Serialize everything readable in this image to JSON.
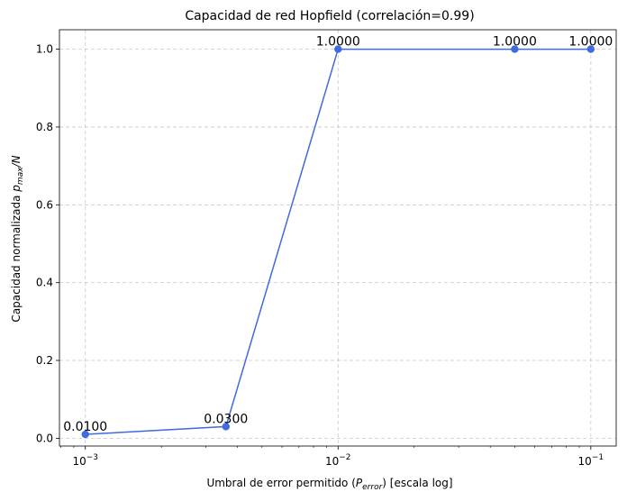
{
  "chart_data": {
    "type": "line",
    "title": "Capacidad de red Hopfield (correlación=0.99)",
    "xlabel": {
      "prefix": "Umbral de error permitido (",
      "var": "P",
      "sub": "error",
      "suffix": ") [escala log]"
    },
    "ylabel": {
      "prefix": "Capacidad normalizada ",
      "var": "p",
      "sub": "max",
      "suffix": "/N"
    },
    "x_scale": "log",
    "xlim": [
      0.00079,
      0.126
    ],
    "ylim": [
      -0.02,
      1.05
    ],
    "grid": true,
    "grid_style": "dashed",
    "series": [
      {
        "name": "capacidad",
        "color": "#4169e1",
        "x": [
          0.001,
          0.0036,
          0.01,
          0.05,
          0.1
        ],
        "y": [
          0.01,
          0.03,
          1.0,
          1.0,
          1.0
        ],
        "labels": [
          "0.0100",
          "0.0300",
          "1.0000",
          "1.0000",
          "1.0000"
        ]
      }
    ],
    "y_ticks": [
      {
        "value": 0.0,
        "label": "0.0"
      },
      {
        "value": 0.2,
        "label": "0.2"
      },
      {
        "value": 0.4,
        "label": "0.4"
      },
      {
        "value": 0.6,
        "label": "0.6"
      },
      {
        "value": 0.8,
        "label": "0.8"
      },
      {
        "value": 1.0,
        "label": "1.0"
      }
    ],
    "x_ticks": [
      {
        "value": 0.001,
        "base": "10",
        "exp": "−3"
      },
      {
        "value": 0.01,
        "base": "10",
        "exp": "−2"
      },
      {
        "value": 0.1,
        "base": "10",
        "exp": "−1"
      }
    ],
    "x_minor_ticks": [
      0.0008,
      0.0009,
      0.002,
      0.003,
      0.004,
      0.005,
      0.006,
      0.007,
      0.008,
      0.009,
      0.02,
      0.03,
      0.04,
      0.05,
      0.06,
      0.07,
      0.08,
      0.09
    ]
  }
}
